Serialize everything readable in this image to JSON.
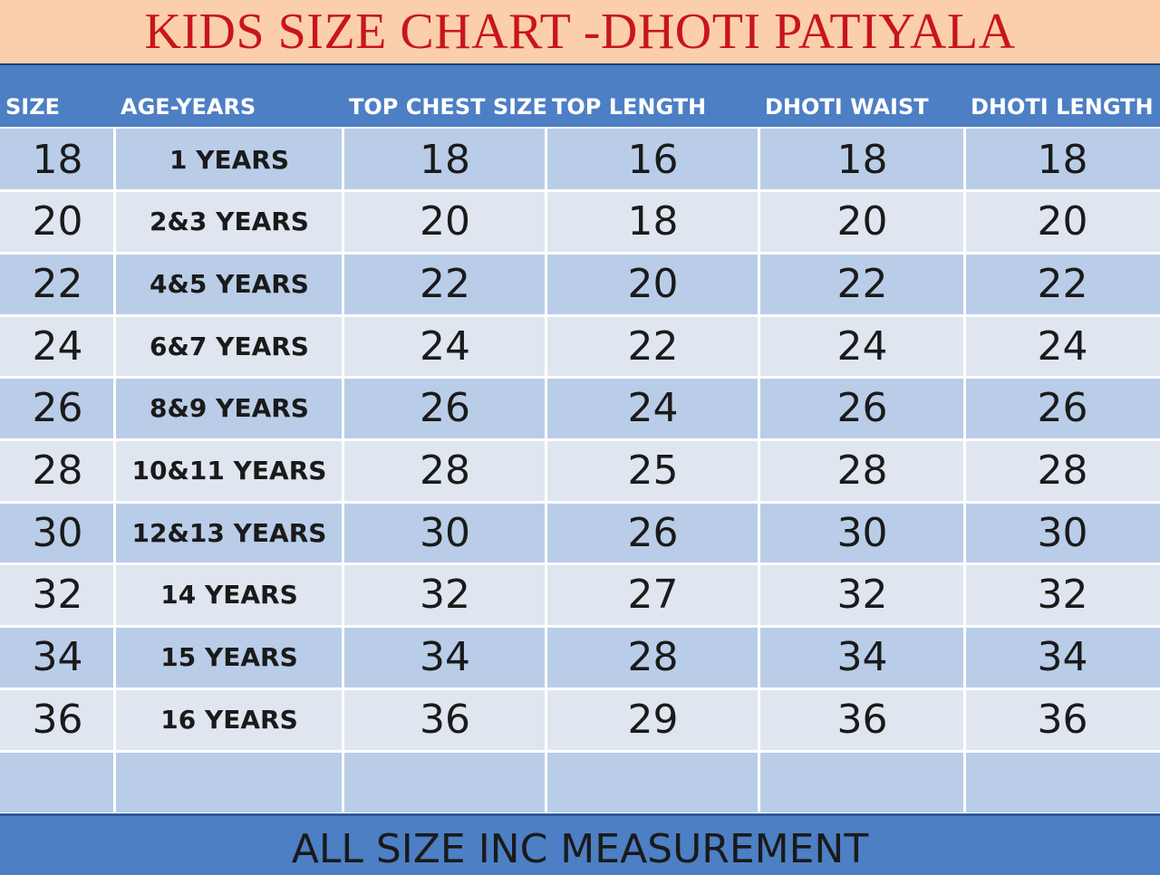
{
  "title": "KIDS SIZE CHART -DHOTI PATIYALA",
  "columns": [
    "SIZE",
    "AGE-YEARS",
    "TOP CHEST SIZE",
    "TOP LENGTH",
    "DHOTI WAIST",
    "DHOTI LENGTH"
  ],
  "rows": [
    {
      "size": "18",
      "age": "1 YEARS",
      "chest": "18",
      "top_length": "16",
      "waist": "18",
      "dhoti_length": "18"
    },
    {
      "size": "20",
      "age": "2&3 YEARS",
      "chest": "20",
      "top_length": "18",
      "waist": "20",
      "dhoti_length": "20"
    },
    {
      "size": "22",
      "age": "4&5 YEARS",
      "chest": "22",
      "top_length": "20",
      "waist": "22",
      "dhoti_length": "22"
    },
    {
      "size": "24",
      "age": "6&7 YEARS",
      "chest": "24",
      "top_length": "22",
      "waist": "24",
      "dhoti_length": "24"
    },
    {
      "size": "26",
      "age": "8&9 YEARS",
      "chest": "26",
      "top_length": "24",
      "waist": "26",
      "dhoti_length": "26"
    },
    {
      "size": "28",
      "age": "10&11 YEARS",
      "chest": "28",
      "top_length": "25",
      "waist": "28",
      "dhoti_length": "28"
    },
    {
      "size": "30",
      "age": "12&13 YEARS",
      "chest": "30",
      "top_length": "26",
      "waist": "30",
      "dhoti_length": "30"
    },
    {
      "size": "32",
      "age": "14 YEARS",
      "chest": "32",
      "top_length": "27",
      "waist": "32",
      "dhoti_length": "32"
    },
    {
      "size": "34",
      "age": "15 YEARS",
      "chest": "34",
      "top_length": "28",
      "waist": "34",
      "dhoti_length": "34"
    },
    {
      "size": "36",
      "age": "16 YEARS",
      "chest": "36",
      "top_length": "29",
      "waist": "36",
      "dhoti_length": "36"
    },
    {
      "size": "",
      "age": "",
      "chest": "",
      "top_length": "",
      "waist": "",
      "dhoti_length": ""
    }
  ],
  "footer": "ALL SIZE INC MEASUREMENT",
  "colors": {
    "title_bg": "#fbcfab",
    "title_text": "#c8151b",
    "header_bg": "#4d7fc4",
    "row_dark": "#b9cde8",
    "row_light": "#dfe6f0"
  }
}
